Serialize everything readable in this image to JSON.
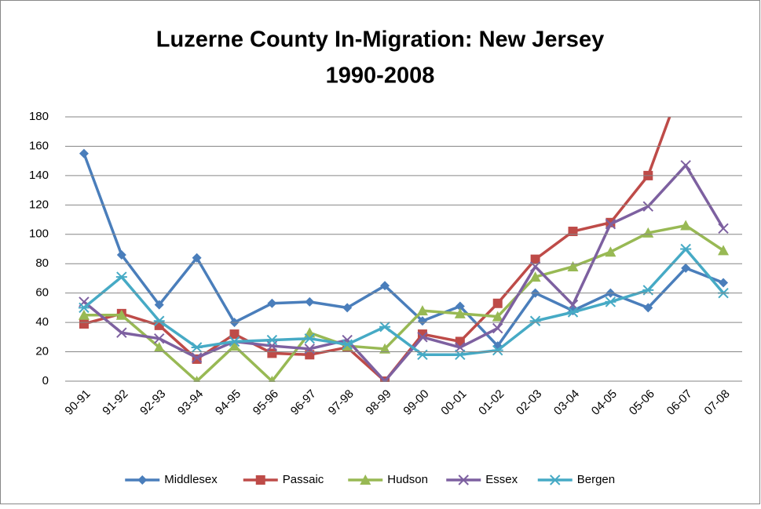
{
  "chart_data": {
    "type": "line",
    "title": "Luzerne County In-Migration: New Jersey",
    "subtitle": "1990-2008",
    "categories": [
      "90-91",
      "91-92",
      "92-93",
      "93-94",
      "94-95",
      "95-96",
      "96-97",
      "97-98",
      "98-99",
      "99-00",
      "00-01",
      "01-02",
      "02-03",
      "03-04",
      "04-05",
      "05-06",
      "06-07",
      "07-08"
    ],
    "series": [
      {
        "name": "Middlesex",
        "color": "#4a7ebb",
        "marker": "diamond",
        "values": [
          155,
          86,
          52,
          84,
          40,
          53,
          54,
          50,
          65,
          41,
          51,
          24,
          60,
          48,
          60,
          50,
          77,
          67
        ]
      },
      {
        "name": "Passaic",
        "color": "#be4b48",
        "marker": "square",
        "values": [
          39,
          46,
          38,
          15,
          32,
          19,
          18,
          23,
          0,
          32,
          27,
          53,
          83,
          102,
          108,
          140,
          210,
          null
        ]
      },
      {
        "name": "Hudson",
        "color": "#98b954",
        "marker": "triangle",
        "values": [
          45,
          45,
          23,
          0,
          24,
          0,
          33,
          24,
          22,
          48,
          46,
          44,
          71,
          78,
          88,
          101,
          106,
          89
        ]
      },
      {
        "name": "Essex",
        "color": "#7d60a0",
        "marker": "x",
        "values": [
          54,
          33,
          29,
          16,
          27,
          24,
          22,
          28,
          0,
          30,
          23,
          36,
          78,
          52,
          107,
          119,
          147,
          104
        ]
      },
      {
        "name": "Bergen",
        "color": "#46aac5",
        "marker": "star",
        "values": [
          50,
          71,
          41,
          23,
          27,
          28,
          29,
          25,
          37,
          18,
          18,
          21,
          41,
          47,
          54,
          62,
          90,
          60
        ]
      }
    ],
    "ylim": [
      0,
      180
    ],
    "yticks": [
      0,
      20,
      40,
      60,
      80,
      100,
      120,
      140,
      160,
      180
    ],
    "grid": true,
    "legend": "bottom"
  }
}
